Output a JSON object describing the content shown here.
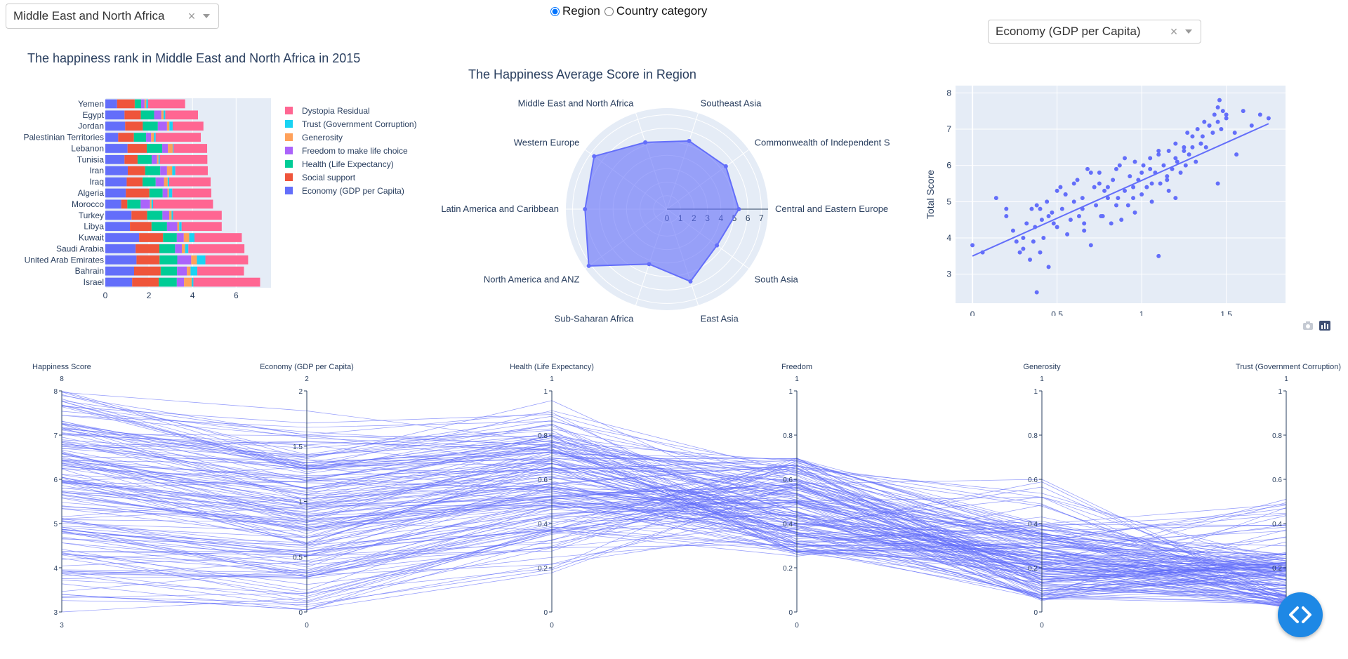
{
  "controls": {
    "region_dropdown": {
      "value": "Middle East and North Africa",
      "clear": "×"
    },
    "radio": {
      "options": [
        {
          "label": "Region",
          "checked": true
        },
        {
          "label": "Country category",
          "checked": false
        }
      ]
    },
    "metric_dropdown": {
      "value": "Economy (GDP per Capita)",
      "clear": "×"
    }
  },
  "colors": {
    "economy": "#636efa",
    "social": "#ef553b",
    "health": "#00cc96",
    "freedom": "#ab63fa",
    "generosity": "#ffa15a",
    "trust": "#19d3f3",
    "dystopia": "#ff6692",
    "plot_bg": "#e5ecf6",
    "fab": "#1e88e5"
  },
  "chart_data": [
    {
      "type": "bar",
      "orientation": "horizontal-stacked",
      "title": "The happiness rank in Middle East and North Africa in 2015",
      "categories": [
        "Yemen",
        "Egypt",
        "Jordan",
        "Palestinian Territories",
        "Lebanon",
        "Tunisia",
        "Iran",
        "Iraq",
        "Algeria",
        "Morocco",
        "Turkey",
        "Libya",
        "Kuwait",
        "Saudi Arabia",
        "United Arab Emirates",
        "Bahrain",
        "Israel"
      ],
      "xticks": [
        0,
        2,
        4,
        6
      ],
      "xlim": [
        0,
        7.6
      ],
      "legend": [
        "Dystopia Residual",
        "Trust (Government Corruption)",
        "Generosity",
        "Freedom to make life choice",
        "Health (Life Expectancy)",
        "Social support",
        "Economy (GDP per Capita)"
      ],
      "series": [
        {
          "name": "Economy (GDP per Capita)",
          "key": "economy",
          "values": [
            0.54,
            0.88,
            0.91,
            0.59,
            1.02,
            0.88,
            1.03,
            0.98,
            0.94,
            0.73,
            1.2,
            1.13,
            1.55,
            1.39,
            1.43,
            1.32,
            1.23
          ]
        },
        {
          "name": "Social support",
          "key": "social",
          "values": [
            0.81,
            0.75,
            0.81,
            0.72,
            0.88,
            0.6,
            0.8,
            0.73,
            1.08,
            0.28,
            0.72,
            0.99,
            1.1,
            1.09,
            1.06,
            1.22,
            1.22
          ]
        },
        {
          "name": "Health (Life Expectancy)",
          "key": "health",
          "values": [
            0.29,
            0.61,
            0.69,
            0.56,
            0.71,
            0.65,
            0.69,
            0.6,
            0.61,
            0.61,
            0.7,
            0.71,
            0.63,
            0.72,
            0.81,
            0.75,
            0.83
          ]
        },
        {
          "name": "Freedom to make life choice",
          "key": "freedom",
          "values": [
            0.16,
            0.33,
            0.42,
            0.23,
            0.26,
            0.24,
            0.31,
            0.38,
            0.22,
            0.43,
            0.31,
            0.47,
            0.32,
            0.31,
            0.64,
            0.45,
            0.33
          ]
        },
        {
          "name": "Generosity",
          "key": "generosity",
          "values": [
            0.08,
            0.1,
            0.11,
            0.13,
            0.22,
            0.07,
            0.24,
            0.17,
            0.07,
            0.07,
            0.11,
            0.09,
            0.25,
            0.15,
            0.26,
            0.17,
            0.35
          ]
        },
        {
          "name": "Trust (Government Corruption)",
          "key": "trust",
          "values": [
            0.08,
            0.08,
            0.15,
            0.08,
            0.04,
            0.06,
            0.14,
            0.07,
            0.15,
            0.07,
            0.07,
            0.11,
            0.24,
            0.15,
            0.39,
            0.31,
            0.08
          ]
        },
        {
          "name": "Dystopia Residual",
          "key": "dystopia",
          "values": [
            1.7,
            1.5,
            1.41,
            2.07,
            1.54,
            2.18,
            1.49,
            1.9,
            1.79,
            2.75,
            2.23,
            1.84,
            2.17,
            2.57,
            1.96,
            2.14,
            3.06
          ]
        }
      ]
    },
    {
      "type": "radar",
      "title": "The Happiness Average Score in Region",
      "categories": [
        "Central and Eastern Europe",
        "Commonwealth of Independent S",
        "Southeast Asia",
        "Middle East and North Africa",
        "Western Europe",
        "Latin America and Caribbean",
        "North America and ANZ",
        "Sub-Saharan Africa",
        "East Asia",
        "South Asia"
      ],
      "values": [
        5.33,
        5.4,
        5.32,
        5.21,
        6.68,
        6.08,
        7.17,
        4.29,
        5.64,
        4.58
      ],
      "rticks": [
        0,
        1,
        2,
        3,
        4,
        5,
        6,
        7
      ],
      "rlim": [
        0,
        7.5
      ]
    },
    {
      "type": "scatter",
      "xlabel": "",
      "ylabel": "Total Score",
      "xticks": [
        0,
        0.5,
        1,
        1.5
      ],
      "yticks": [
        3,
        4,
        5,
        6,
        7,
        8
      ],
      "xlim": [
        -0.1,
        1.85
      ],
      "ylim": [
        2.2,
        8.2
      ],
      "trendline": [
        [
          0,
          3.5
        ],
        [
          1.75,
          7.15
        ]
      ],
      "x": [
        0,
        0.06,
        0.14,
        0.2,
        0.24,
        0.26,
        0.28,
        0.3,
        0.32,
        0.34,
        0.36,
        0.37,
        0.38,
        0.4,
        0.41,
        0.42,
        0.44,
        0.45,
        0.47,
        0.48,
        0.5,
        0.52,
        0.53,
        0.55,
        0.56,
        0.58,
        0.6,
        0.62,
        0.63,
        0.65,
        0.66,
        0.68,
        0.7,
        0.72,
        0.73,
        0.75,
        0.77,
        0.78,
        0.8,
        0.82,
        0.83,
        0.85,
        0.87,
        0.88,
        0.9,
        0.92,
        0.93,
        0.95,
        0.96,
        0.98,
        1.0,
        1.01,
        1.03,
        1.05,
        1.06,
        1.08,
        1.1,
        1.11,
        1.13,
        1.15,
        1.16,
        1.18,
        1.2,
        1.21,
        1.23,
        1.25,
        1.27,
        1.28,
        1.3,
        1.32,
        1.33,
        1.35,
        1.37,
        1.38,
        1.4,
        1.42,
        1.43,
        1.45,
        1.47,
        1.48,
        1.5,
        1.55,
        1.6,
        1.65,
        1.7,
        1.75,
        0.35,
        0.45,
        0.55,
        0.65,
        0.75,
        0.85,
        0.95,
        1.05,
        1.15,
        1.25,
        1.35,
        1.45,
        0.2,
        0.3,
        0.4,
        0.5,
        0.6,
        0.7,
        0.8,
        0.9,
        1.0,
        1.1,
        1.2,
        1.3,
        1.4,
        1.5,
        0.66,
        0.76,
        0.86,
        0.96,
        1.06,
        1.16,
        1.26,
        1.36,
        1.46,
        1.56,
        0.38,
        1.1,
        1.45,
        1.2
      ],
      "y": [
        3.8,
        3.6,
        5.1,
        4.6,
        4.2,
        3.9,
        3.6,
        3.7,
        4.4,
        3.4,
        3.9,
        4.3,
        4.9,
        3.6,
        4.5,
        4.0,
        5.0,
        3.2,
        4.7,
        4.4,
        4.3,
        5.4,
        4.8,
        5.2,
        4.1,
        4.5,
        5.0,
        5.6,
        4.6,
        5.1,
        4.4,
        5.9,
        3.8,
        5.4,
        4.9,
        5.8,
        4.6,
        5.3,
        5.1,
        4.4,
        5.6,
        4.9,
        6.0,
        4.5,
        5.3,
        4.9,
        5.7,
        5.1,
        6.1,
        5.6,
        5.2,
        6.0,
        5.4,
        6.2,
        5.0,
        5.8,
        6.3,
        5.5,
        6.0,
        5.6,
        6.4,
        5.9,
        6.6,
        6.1,
        5.8,
        6.5,
        6.9,
        6.3,
        6.8,
        6.1,
        7.0,
        6.6,
        7.2,
        6.5,
        7.1,
        6.9,
        7.4,
        7.2,
        7.0,
        7.5,
        7.3,
        6.9,
        7.5,
        7.1,
        7.4,
        7.3,
        4.8,
        4.6,
        5.2,
        4.8,
        5.5,
        5.9,
        5.4,
        5.9,
        5.7,
        6.4,
        6.6,
        7.6,
        4.8,
        4.0,
        4.8,
        5.3,
        5.5,
        5.8,
        5.4,
        6.2,
        5.8,
        6.4,
        6.2,
        6.5,
        7.1,
        7.4,
        4.2,
        4.6,
        5.1,
        4.7,
        5.5,
        5.3,
        6.0,
        6.8,
        7.8,
        6.3,
        2.5,
        3.5,
        5.5,
        5.1
      ]
    },
    {
      "type": "parallel",
      "axes": [
        {
          "label": "Happiness Score",
          "range": [
            3,
            8
          ],
          "ticks": [
            3,
            4,
            5,
            6,
            7,
            8
          ],
          "max_label": "8",
          "min_label": "3"
        },
        {
          "label": "Economy (GDP per Capita)",
          "range": [
            0,
            2
          ],
          "ticks": [
            0,
            0.5,
            1,
            1.5,
            2
          ],
          "max_label": "2",
          "min_label": "0"
        },
        {
          "label": "Health (Life Expectancy)",
          "range": [
            0,
            1
          ],
          "ticks": [
            0,
            0.2,
            0.4,
            0.6,
            0.8,
            1
          ],
          "max_label": "1",
          "min_label": "0"
        },
        {
          "label": "Freedom",
          "range": [
            0,
            1
          ],
          "ticks": [
            0,
            0.2,
            0.4,
            0.6,
            0.8,
            1
          ],
          "max_label": "1",
          "min_label": "0"
        },
        {
          "label": "Generosity",
          "range": [
            0,
            1
          ],
          "ticks": [
            0,
            0.2,
            0.4,
            0.6,
            0.8,
            1
          ],
          "max_label": "1",
          "min_label": "0"
        },
        {
          "label": "Trust (Government Corruption)",
          "range": [
            0,
            1
          ],
          "ticks": [
            0,
            0.2,
            0.4,
            0.6,
            0.8,
            1
          ],
          "max_label": "1",
          "min_label": "0"
        }
      ],
      "line_color": "#636efa",
      "line_count": 158
    }
  ]
}
